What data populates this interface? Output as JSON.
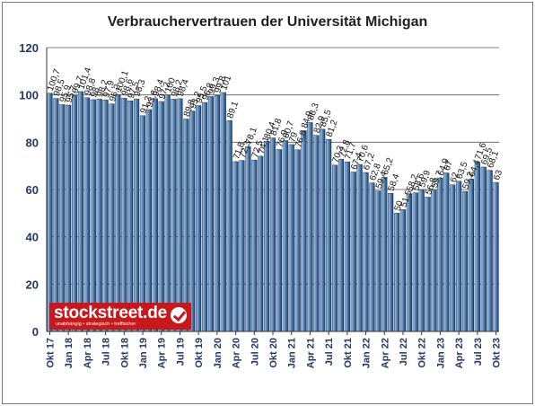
{
  "title": "Verbrauchervertrauen der Universität Michigan",
  "logo": {
    "text": "stockstreet.de",
    "tagline": "unabhängig • strategisch • treffsicher"
  },
  "colors": {
    "bar_fill_light": "#aecbe8",
    "bar_fill_dark": "#1d3f6e",
    "gridline": "#555555",
    "axis_text": "#1f3864",
    "logo_red": "#c8181b"
  },
  "chart_data": {
    "type": "bar",
    "title": "Verbrauchervertrauen der Universität Michigan",
    "xlabel": "",
    "ylabel": "",
    "ylim": [
      0,
      120
    ],
    "yticks": [
      0,
      20,
      40,
      60,
      80,
      100,
      120
    ],
    "grid": true,
    "categories": [
      "Okt 17",
      "Nov 17",
      "Dez 17",
      "Jan 18",
      "Feb 18",
      "Mrz 18",
      "Apr 18",
      "Mai 18",
      "Jun 18",
      "Jul 18",
      "Aug 18",
      "Sep 18",
      "Okt 18",
      "Nov 18",
      "Dez 18",
      "Jan 19",
      "Feb 19",
      "Mrz 19",
      "Apr 19",
      "Mai 19",
      "Jun 19",
      "Jul 19",
      "Aug 19",
      "Sep 19",
      "Okt 19",
      "Nov 19",
      "Dez 19",
      "Jan 20",
      "Feb 20",
      "Mrz 20",
      "Apr 20",
      "Mai 20",
      "Jun 20",
      "Jul 20",
      "Aug 20",
      "Sep 20",
      "Okt 20",
      "Nov 20",
      "Dez 20",
      "Jan 21",
      "Feb 21",
      "Mrz 21",
      "Apr 21",
      "Mai 21",
      "Jun 21",
      "Jul 21",
      "Aug 21",
      "Sep 21",
      "Okt 21",
      "Nov 21",
      "Dez 21",
      "Jan 22",
      "Feb 22",
      "Mrz 22",
      "Apr 22",
      "Mai 22",
      "Jun 22",
      "Jul 22",
      "Aug 22",
      "Sep 22",
      "Okt 22",
      "Nov 22",
      "Dez 22",
      "Jan 23",
      "Feb 23",
      "Mrz 23",
      "Apr 23",
      "Mai 23",
      "Jun 23",
      "Jul 23",
      "Aug 23",
      "Sep 23",
      "Okt 23"
    ],
    "tick_labels": [
      {
        "index": 0,
        "label": "Okt 17"
      },
      {
        "index": 3,
        "label": "Jan 18"
      },
      {
        "index": 6,
        "label": "Apr 18"
      },
      {
        "index": 9,
        "label": "Jul 18"
      },
      {
        "index": 12,
        "label": "Okt 18"
      },
      {
        "index": 15,
        "label": "Jan 19"
      },
      {
        "index": 18,
        "label": "Apr 19"
      },
      {
        "index": 21,
        "label": "Jul 19"
      },
      {
        "index": 24,
        "label": "Okt 19"
      },
      {
        "index": 27,
        "label": "Jan 20"
      },
      {
        "index": 30,
        "label": "Apr 20"
      },
      {
        "index": 33,
        "label": "Jul 20"
      },
      {
        "index": 36,
        "label": "Okt 20"
      },
      {
        "index": 39,
        "label": "Jan 21"
      },
      {
        "index": 42,
        "label": "Apr 21"
      },
      {
        "index": 45,
        "label": "Jul 21"
      },
      {
        "index": 48,
        "label": "Okt 21"
      },
      {
        "index": 51,
        "label": "Jan 22"
      },
      {
        "index": 54,
        "label": "Apr 22"
      },
      {
        "index": 57,
        "label": "Jul 22"
      },
      {
        "index": 60,
        "label": "Okt 22"
      },
      {
        "index": 63,
        "label": "Jan 23"
      },
      {
        "index": 66,
        "label": "Apr 23"
      },
      {
        "index": 69,
        "label": "Jul 23"
      },
      {
        "index": 72,
        "label": "Okt 23"
      }
    ],
    "values": [
      100.7,
      98.5,
      95.9,
      95.7,
      99.7,
      101.4,
      98.8,
      98.0,
      98.2,
      97.9,
      96.2,
      100.1,
      98.6,
      97.5,
      98.3,
      91.2,
      93.8,
      98.4,
      97.2,
      100.0,
      98.2,
      98.4,
      89.8,
      93.2,
      95.5,
      96.8,
      99.3,
      99.8,
      101.0,
      89.1,
      71.8,
      72.3,
      78.1,
      72.5,
      74.1,
      80.4,
      81.8,
      76.9,
      80.7,
      79.0,
      76.8,
      84.9,
      88.3,
      82.9,
      85.5,
      81.2,
      70.3,
      72.8,
      71.7,
      67.4,
      70.6,
      67.2,
      62.8,
      59.4,
      65.2,
      58.4,
      50.0,
      51.5,
      58.2,
      58.6,
      59.9,
      56.8,
      59.7,
      64.9,
      67.0,
      62.0,
      63.5,
      59.2,
      64.4,
      71.6,
      69.5,
      68.1,
      63.0
    ],
    "value_labels": [
      "100,7",
      "98,5",
      "95,9",
      "95,7",
      "99,7",
      "101,4",
      "98,8",
      "98",
      "98,2",
      "97,9",
      "96,2",
      "100,1",
      "98,6",
      "97,5",
      "98,3",
      "91,2",
      "93,8",
      "98,4",
      "97,2",
      "100",
      "98,2",
      "98,4",
      "89,8",
      "93,2",
      "95,5",
      "96,8",
      "99,3",
      "99,8",
      "101",
      "89,1",
      "71,8",
      "72,3",
      "78,1",
      "72,5",
      "74,1",
      "80,4",
      "81,8",
      "76,9",
      "80,7",
      "79",
      "76,8",
      "84,9",
      "88,3",
      "82,9",
      "85,5",
      "81,2",
      "70,3",
      "72,8",
      "71,7",
      "67,4",
      "70,6",
      "67,2",
      "62,8",
      "59,4",
      "65,2",
      "58,4",
      "50",
      "51,5",
      "58,2",
      "58,6",
      "59,9",
      "56,8",
      "59,7",
      "64,9",
      "67",
      "62",
      "63,5",
      "59,2",
      "64,4",
      "71,6",
      "69,5",
      "68,1",
      "63"
    ]
  }
}
